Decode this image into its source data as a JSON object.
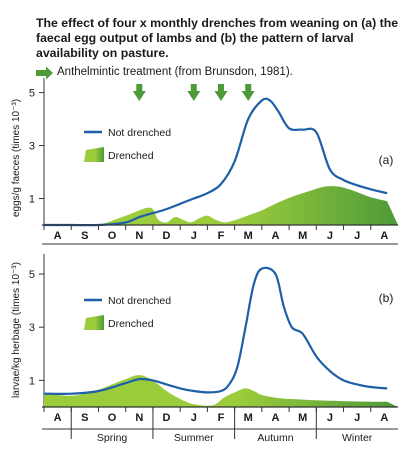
{
  "title": "The effect of four x monthly drenches from weaning on (a) the faecal egg output  of lambs and (b) the pattern of larval availability on pasture.",
  "treatment_note": "Anthelmintic treatment (from Brunsdon, 1981).",
  "colors": {
    "not_drenched": "#1f5fa8",
    "drenched_light": "#9bcc3c",
    "drenched_dark": "#4e9a38",
    "arrow": "#4e9a38",
    "axis": "#333333"
  },
  "months": [
    "A",
    "S",
    "O",
    "N",
    "D",
    "J",
    "F",
    "M",
    "A",
    "M",
    "J",
    "J",
    "A"
  ],
  "seasons": [
    "Spring",
    "Summer",
    "Autumn",
    "Winter"
  ],
  "chart_data": [
    {
      "type": "area",
      "panel_label": "(a)",
      "ylabel": "eggs/g faeces (times 10⁻³)",
      "yticks": [
        1,
        3,
        5
      ],
      "ylim": [
        0,
        5.4
      ],
      "categories": [
        "A",
        "S",
        "O",
        "N",
        "D",
        "J",
        "F",
        "M",
        "A",
        "M",
        "J",
        "J",
        "A"
      ],
      "treatment_months": [
        "N",
        "J",
        "F",
        "M"
      ],
      "series": [
        {
          "name": "Not drenched",
          "style": "line",
          "x": [
            0,
            1,
            2,
            3,
            3.5,
            4,
            4.5,
            5,
            5.5,
            6,
            6.5,
            7,
            7.5,
            8,
            8.3,
            8.6,
            9,
            9.5,
            10,
            10.5,
            11,
            11.5,
            12,
            12.6
          ],
          "y": [
            0,
            0,
            0,
            0.1,
            0.3,
            0.45,
            0.6,
            0.8,
            1.0,
            1.2,
            1.55,
            2.4,
            4.0,
            4.7,
            4.7,
            4.3,
            3.65,
            3.6,
            3.5,
            2.1,
            1.7,
            1.5,
            1.35,
            1.2
          ]
        },
        {
          "name": "Drenched",
          "style": "area",
          "x": [
            0,
            1,
            2,
            3,
            3.5,
            3.8,
            4,
            4.2,
            4.5,
            4.8,
            5.1,
            5.4,
            5.7,
            6,
            6.3,
            6.6,
            6.9,
            7.2,
            7.6,
            8,
            8.6,
            9.2,
            9.8,
            10.3,
            10.8,
            11.2,
            11.6,
            12,
            12.6
          ],
          "y": [
            0,
            0,
            0.02,
            0.35,
            0.55,
            0.65,
            0.6,
            0.2,
            0.1,
            0.3,
            0.2,
            0.1,
            0.25,
            0.35,
            0.2,
            0.1,
            0.15,
            0.25,
            0.4,
            0.55,
            0.85,
            1.1,
            1.3,
            1.45,
            1.45,
            1.35,
            1.2,
            1.05,
            0.9
          ]
        }
      ]
    },
    {
      "type": "area",
      "panel_label": "(b)",
      "ylabel": "larvae/kg herbage (times 10⁻³)",
      "yticks": [
        1,
        3,
        5
      ],
      "ylim": [
        0,
        5.6
      ],
      "categories": [
        "A",
        "S",
        "O",
        "N",
        "D",
        "J",
        "F",
        "M",
        "A",
        "M",
        "J",
        "J",
        "A"
      ],
      "seasons": [
        "Spring",
        "Summer",
        "Autumn",
        "Winter"
      ],
      "series": [
        {
          "name": "Not drenched",
          "style": "line",
          "x": [
            0,
            1,
            2,
            3,
            3.5,
            4,
            4.5,
            5,
            5.5,
            6,
            6.5,
            6.8,
            7.1,
            7.4,
            7.7,
            8,
            8.5,
            8.8,
            9.1,
            9.5,
            10,
            10.5,
            11,
            11.5,
            12,
            12.6
          ],
          "y": [
            0.5,
            0.5,
            0.6,
            0.9,
            1.05,
            1.0,
            0.85,
            0.7,
            0.6,
            0.55,
            0.6,
            0.85,
            1.5,
            3.0,
            4.6,
            5.2,
            5.0,
            3.8,
            3.0,
            2.75,
            1.9,
            1.35,
            1.0,
            0.85,
            0.75,
            0.7
          ]
        },
        {
          "name": "Drenched",
          "style": "area",
          "x": [
            0,
            0.5,
            1,
            1.5,
            2,
            2.5,
            3,
            3.5,
            4,
            4.5,
            5,
            5.5,
            6,
            6.3,
            6.6,
            7,
            7.4,
            7.7,
            8,
            8.5,
            9,
            9.5,
            10,
            11,
            12,
            12.6
          ],
          "y": [
            0.5,
            0.45,
            0.42,
            0.5,
            0.65,
            0.85,
            1.05,
            1.2,
            1.0,
            0.6,
            0.3,
            0.1,
            0.05,
            0.1,
            0.35,
            0.55,
            0.7,
            0.6,
            0.45,
            0.35,
            0.3,
            0.28,
            0.25,
            0.22,
            0.2,
            0.2
          ]
        }
      ]
    }
  ]
}
